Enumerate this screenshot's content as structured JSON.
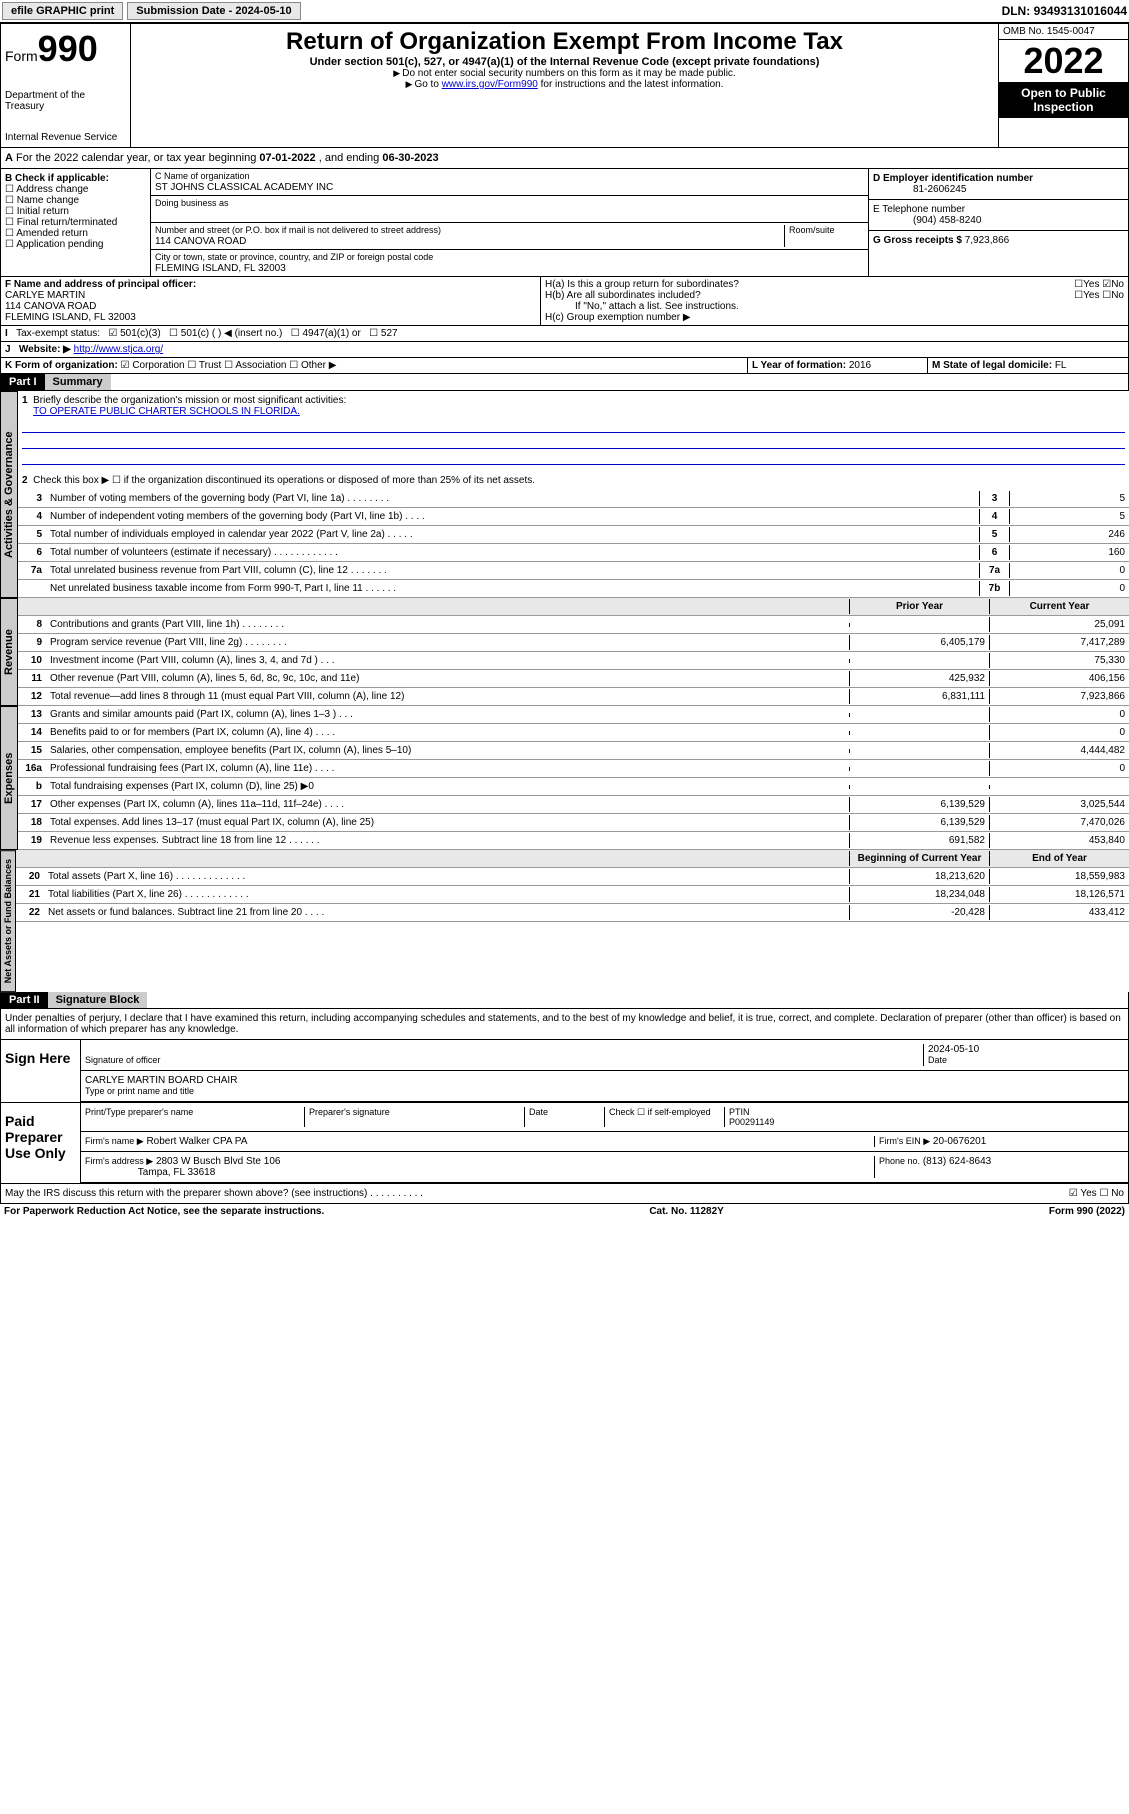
{
  "topbar": {
    "efile": "efile GRAPHIC print",
    "subdate_label": "Submission Date - ",
    "subdate": "2024-05-10",
    "dln_label": "DLN: ",
    "dln": "93493131016044"
  },
  "header": {
    "form": "Form",
    "formnum": "990",
    "dept": "Department of the Treasury",
    "irs": "Internal Revenue Service",
    "title": "Return of Organization Exempt From Income Tax",
    "subtitle": "Under section 501(c), 527, or 4947(a)(1) of the Internal Revenue Code (except private foundations)",
    "instr1": "Do not enter social security numbers on this form as it may be made public.",
    "instr2_pre": "Go to ",
    "instr2_link": "www.irs.gov/Form990",
    "instr2_post": " for instructions and the latest information.",
    "omb": "OMB No. 1545-0047",
    "year": "2022",
    "open": "Open to Public Inspection"
  },
  "period": {
    "text_pre": "For the 2022 calendar year, or tax year beginning ",
    "begin": "07-01-2022",
    "text_mid": " , and ending ",
    "end": "06-30-2023"
  },
  "sectionB": {
    "label": "B Check if applicable:",
    "items": [
      "Address change",
      "Name change",
      "Initial return",
      "Final return/terminated",
      "Amended return",
      "Application pending"
    ]
  },
  "sectionC": {
    "name_label": "C Name of organization",
    "name": "ST JOHNS CLASSICAL ACADEMY INC",
    "dba_label": "Doing business as",
    "addr_label": "Number and street (or P.O. box if mail is not delivered to street address)",
    "room_label": "Room/suite",
    "addr": "114 CANOVA ROAD",
    "city_label": "City or town, state or province, country, and ZIP or foreign postal code",
    "city": "FLEMING ISLAND, FL  32003"
  },
  "sectionD": {
    "label": "D Employer identification number",
    "val": "81-2606245"
  },
  "sectionE": {
    "label": "E Telephone number",
    "val": "(904) 458-8240"
  },
  "sectionG": {
    "label": "G Gross receipts $",
    "val": "7,923,866"
  },
  "sectionF": {
    "label": "F Name and address of principal officer:",
    "name": "CARLYE MARTIN",
    "addr1": "114 CANOVA ROAD",
    "addr2": "FLEMING ISLAND, FL  32003"
  },
  "sectionH": {
    "a": "H(a)  Is this a group return for subordinates?",
    "a_yes": "Yes",
    "a_no": "No",
    "b": "H(b)  Are all subordinates included?",
    "b_yes": "Yes",
    "b_no": "No",
    "b_note": "If \"No,\" attach a list. See instructions.",
    "c": "H(c)  Group exemption number ▶"
  },
  "sectionI": {
    "label": "Tax-exempt status:",
    "opts": [
      "501(c)(3)",
      "501(c) (  ) ◀ (insert no.)",
      "4947(a)(1) or",
      "527"
    ]
  },
  "sectionJ": {
    "label": "Website: ▶",
    "val": "http://www.stjca.org/"
  },
  "sectionK": {
    "label": "K Form of organization:",
    "opts": [
      "Corporation",
      "Trust",
      "Association",
      "Other ▶"
    ]
  },
  "sectionL": {
    "label": "L Year of formation:",
    "val": "2016"
  },
  "sectionM": {
    "label": "M State of legal domicile:",
    "val": "FL"
  },
  "part1": {
    "hdr": "Part I",
    "title": "Summary",
    "line1_label": "Briefly describe the organization's mission or most significant activities:",
    "line1_val": "TO OPERATE PUBLIC CHARTER SCHOOLS IN FLORIDA.",
    "line2": "Check this box ▶ ☐  if the organization discontinued its operations or disposed of more than 25% of its net assets.",
    "tabs": {
      "gov": "Activities & Governance",
      "rev": "Revenue",
      "exp": "Expenses",
      "net": "Net Assets or Fund Balances"
    },
    "rows_gov": [
      {
        "n": "3",
        "label": "Number of voting members of the governing body (Part VI, line 1a)  .    .    .    .    .    .    .    .",
        "box": "3",
        "val": "5"
      },
      {
        "n": "4",
        "label": "Number of independent voting members of the governing body (Part VI, line 1b)   .    .    .    .",
        "box": "4",
        "val": "5"
      },
      {
        "n": "5",
        "label": "Total number of individuals employed in calendar year 2022 (Part V, line 2a)   .    .    .    .    .",
        "box": "5",
        "val": "246"
      },
      {
        "n": "6",
        "label": "Total number of volunteers (estimate if necessary)   .    .    .    .    .    .    .    .    .    .    .    .",
        "box": "6",
        "val": "160"
      },
      {
        "n": "7a",
        "label": "Total unrelated business revenue from Part VIII, column (C), line 12  .    .    .    .    .    .    .",
        "box": "7a",
        "val": "0"
      },
      {
        "n": "",
        "label": "Net unrelated business taxable income from Form 990-T, Part I, line 11  .    .    .    .    .    .",
        "box": "7b",
        "val": "0"
      }
    ],
    "col_hdr": {
      "prior": "Prior Year",
      "current": "Current Year"
    },
    "rows_rev": [
      {
        "n": "8",
        "label": "Contributions and grants (Part VIII, line 1h)   .    .    .    .    .    .    .    .",
        "prior": "",
        "current": "25,091"
      },
      {
        "n": "9",
        "label": "Program service revenue (Part VIII, line 2g)    .    .    .    .    .    .    .    .",
        "prior": "6,405,179",
        "current": "7,417,289"
      },
      {
        "n": "10",
        "label": "Investment income (Part VIII, column (A), lines 3, 4, and 7d )   .    .    .",
        "prior": "",
        "current": "75,330"
      },
      {
        "n": "11",
        "label": "Other revenue (Part VIII, column (A), lines 5, 6d, 8c, 9c, 10c, and 11e)",
        "prior": "425,932",
        "current": "406,156"
      },
      {
        "n": "12",
        "label": "Total revenue—add lines 8 through 11 (must equal Part VIII, column (A), line 12)",
        "prior": "6,831,111",
        "current": "7,923,866"
      }
    ],
    "rows_exp": [
      {
        "n": "13",
        "label": "Grants and similar amounts paid (Part IX, column (A), lines 1–3 )   .    .    .",
        "prior": "",
        "current": "0"
      },
      {
        "n": "14",
        "label": "Benefits paid to or for members (Part IX, column (A), line 4)  .    .    .    .",
        "prior": "",
        "current": "0"
      },
      {
        "n": "15",
        "label": "Salaries, other compensation, employee benefits (Part IX, column (A), lines 5–10)",
        "prior": "",
        "current": "4,444,482"
      },
      {
        "n": "16a",
        "label": "Professional fundraising fees (Part IX, column (A), line 11e)  .    .    .    .",
        "prior": "",
        "current": "0"
      },
      {
        "n": "b",
        "label": "Total fundraising expenses (Part IX, column (D), line 25) ▶0",
        "prior": "",
        "current": ""
      },
      {
        "n": "17",
        "label": "Other expenses (Part IX, column (A), lines 11a–11d, 11f–24e)  .    .    .    .",
        "prior": "6,139,529",
        "current": "3,025,544"
      },
      {
        "n": "18",
        "label": "Total expenses. Add lines 13–17 (must equal Part IX, column (A), line 25)",
        "prior": "6,139,529",
        "current": "7,470,026"
      },
      {
        "n": "19",
        "label": "Revenue less expenses. Subtract line 18 from line 12   .    .    .    .    .    .",
        "prior": "691,582",
        "current": "453,840"
      }
    ],
    "col_hdr2": {
      "begin": "Beginning of Current Year",
      "end": "End of Year"
    },
    "rows_net": [
      {
        "n": "20",
        "label": "Total assets (Part X, line 16)  .    .    .    .    .    .    .    .    .    .    .    .    .",
        "prior": "18,213,620",
        "current": "18,559,983"
      },
      {
        "n": "21",
        "label": "Total liabilities (Part X, line 26)  .    .    .    .    .    .    .    .    .    .    .    .",
        "prior": "18,234,048",
        "current": "18,126,571"
      },
      {
        "n": "22",
        "label": "Net assets or fund balances. Subtract line 21 from line 20   .    .    .    .",
        "prior": "-20,428",
        "current": "433,412"
      }
    ]
  },
  "part2": {
    "hdr": "Part II",
    "title": "Signature Block",
    "declare": "Under penalties of perjury, I declare that I have examined this return, including accompanying schedules and statements, and to the best of my knowledge and belief, it is true, correct, and complete. Declaration of preparer (other than officer) is based on all information of which preparer has any knowledge.",
    "sign_here": "Sign Here",
    "sig_officer": "Signature of officer",
    "date": "Date",
    "sig_date": "2024-05-10",
    "officer_name": "CARLYE MARTIN BOARD CHAIR",
    "officer_label": "Type or print name and title",
    "paid": "Paid Preparer Use Only",
    "prep_name_label": "Print/Type preparer's name",
    "prep_sig_label": "Preparer's signature",
    "check_label": "Check ☐ if self-employed",
    "ptin_label": "PTIN",
    "ptin": "P00291149",
    "firm_name_label": "Firm's name   ▶",
    "firm_name": "Robert Walker CPA PA",
    "firm_ein_label": "Firm's EIN ▶",
    "firm_ein": "20-0676201",
    "firm_addr_label": "Firm's address ▶",
    "firm_addr1": "2803 W Busch Blvd Ste 106",
    "firm_addr2": "Tampa, FL  33618",
    "phone_label": "Phone no.",
    "phone": "(813) 624-8643",
    "discuss": "May the IRS discuss this return with the preparer shown above? (see instructions)   .    .    .    .    .    .    .    .    .    .",
    "discuss_yes": "Yes",
    "discuss_no": "No"
  },
  "footer": {
    "left": "For Paperwork Reduction Act Notice, see the separate instructions.",
    "mid": "Cat. No. 11282Y",
    "right": "Form 990 (2022)"
  }
}
